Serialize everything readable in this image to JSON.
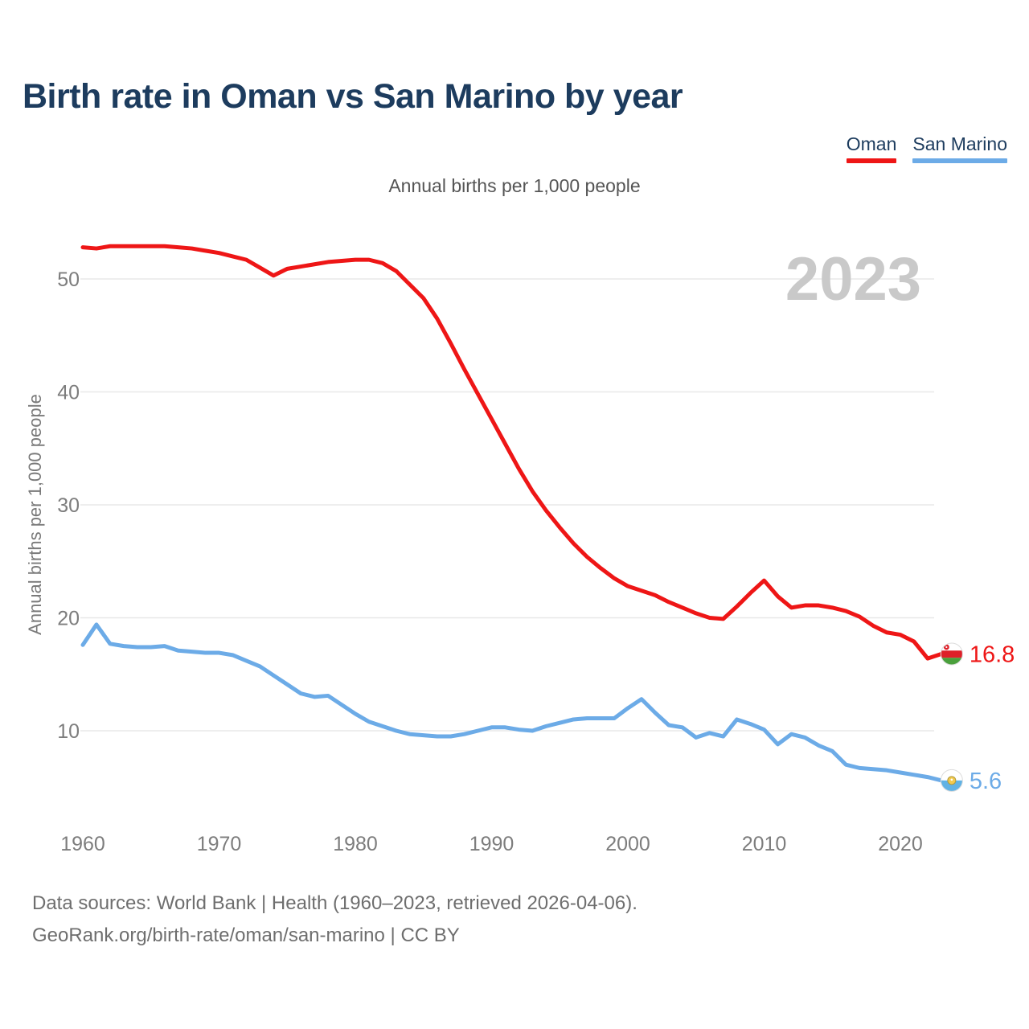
{
  "header": {
    "title": "Birth rate in Oman vs San Marino by year",
    "subtitle": "Annual births per 1,000 people"
  },
  "legend": [
    {
      "label": "Oman",
      "color": "#ee1616"
    },
    {
      "label": "San Marino",
      "color": "#6cabe7"
    }
  ],
  "watermark": "2023",
  "y_axis": {
    "title": "Annual births per 1,000 people",
    "ticks": [
      10,
      20,
      30,
      40,
      50
    ]
  },
  "x_axis": {
    "ticks": [
      1960,
      1970,
      1980,
      1990,
      2000,
      2010,
      2020
    ]
  },
  "footer": {
    "line1": "Data sources: World Bank | Health (1960–2023, retrieved 2026-04-06).",
    "line2": "GeoRank.org/birth-rate/oman/san-marino | CC BY"
  },
  "chart_data": {
    "type": "line",
    "title": "Birth rate in Oman vs San Marino by year",
    "xlabel": "",
    "ylabel": "Annual births per 1,000 people",
    "x_range": [
      1960,
      2023
    ],
    "ylim": [
      0,
      56
    ],
    "grid": "horizontal",
    "legend_position": "top-right",
    "x": [
      1960,
      1961,
      1962,
      1963,
      1964,
      1965,
      1966,
      1967,
      1968,
      1969,
      1970,
      1971,
      1972,
      1973,
      1974,
      1975,
      1976,
      1977,
      1978,
      1979,
      1980,
      1981,
      1982,
      1983,
      1984,
      1985,
      1986,
      1987,
      1988,
      1989,
      1990,
      1991,
      1992,
      1993,
      1994,
      1995,
      1996,
      1997,
      1998,
      1999,
      2000,
      2001,
      2002,
      2003,
      2004,
      2005,
      2006,
      2007,
      2008,
      2009,
      2010,
      2011,
      2012,
      2013,
      2014,
      2015,
      2016,
      2017,
      2018,
      2019,
      2020,
      2021,
      2022,
      2023
    ],
    "series": [
      {
        "name": "Oman",
        "color": "#ee1616",
        "flag": "oman",
        "end_label": "16.8",
        "values": [
          52.8,
          52.7,
          52.9,
          52.9,
          52.9,
          52.9,
          52.9,
          52.8,
          52.7,
          52.5,
          52.3,
          52.0,
          51.7,
          51.0,
          50.3,
          50.9,
          51.1,
          51.3,
          51.5,
          51.6,
          51.7,
          51.7,
          51.4,
          50.7,
          49.5,
          48.3,
          46.5,
          44.3,
          42.0,
          39.8,
          37.6,
          35.4,
          33.2,
          31.2,
          29.5,
          28.0,
          26.6,
          25.4,
          24.4,
          23.5,
          22.8,
          22.4,
          22.0,
          21.4,
          20.9,
          20.4,
          20.0,
          19.9,
          21.0,
          22.2,
          23.3,
          21.9,
          20.9,
          21.1,
          21.1,
          20.9,
          20.6,
          20.1,
          19.3,
          18.7,
          18.5,
          17.9,
          16.4,
          16.8
        ]
      },
      {
        "name": "San Marino",
        "color": "#6cabe7",
        "flag": "san-marino",
        "end_label": "5.6",
        "values": [
          17.6,
          19.4,
          17.7,
          17.5,
          17.4,
          17.4,
          17.5,
          17.1,
          17.0,
          16.9,
          16.9,
          16.7,
          16.2,
          15.7,
          14.9,
          14.1,
          13.3,
          13.0,
          13.1,
          12.3,
          11.5,
          10.8,
          10.4,
          10.0,
          9.7,
          9.6,
          9.5,
          9.5,
          9.7,
          10.0,
          10.3,
          10.3,
          10.1,
          10.0,
          10.4,
          10.7,
          11.0,
          11.1,
          11.1,
          11.1,
          12.0,
          12.8,
          11.6,
          10.5,
          10.3,
          9.4,
          9.8,
          9.5,
          11.0,
          10.6,
          10.1,
          8.8,
          9.7,
          9.4,
          8.7,
          8.2,
          7.0,
          6.7,
          6.6,
          6.5,
          6.3,
          6.1,
          5.9,
          5.6
        ]
      }
    ]
  }
}
